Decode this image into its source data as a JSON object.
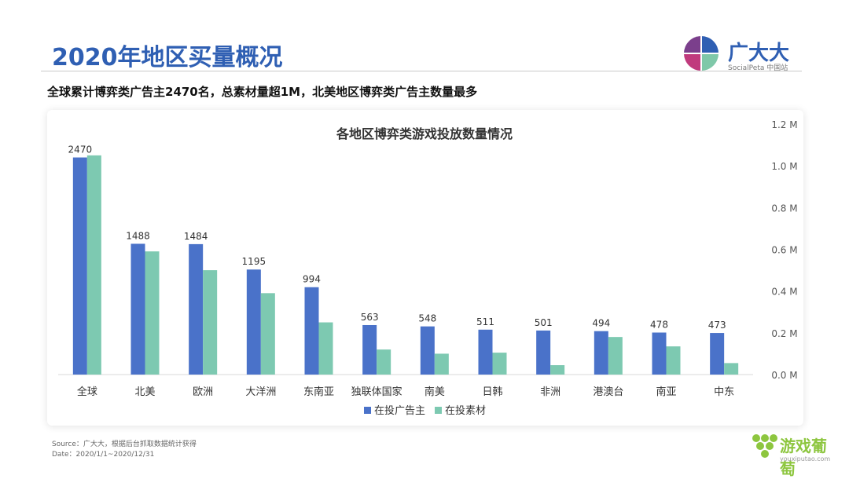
{
  "slide": {
    "title": "2020年地区买量概况",
    "subtitle": "全球累计博弈类广告主2470名，总素材量超1M，北美地区博弈类广告主数量最多",
    "source": "Source：广大大，根据后台抓取数据统计获得",
    "date": "Date：2020/1/1~2020/12/31"
  },
  "logo": {
    "name": "广大大",
    "sub": "SocialPeta 中国站",
    "colors": [
      "#7b3f8c",
      "#2f5fb3",
      "#7fc8a9",
      "#c9c9c9"
    ]
  },
  "watermark": {
    "name": "游戏葡萄",
    "url": "youxiputao.com",
    "color": "#8dc63f"
  },
  "chart_data": {
    "type": "bar",
    "title": "各地区博弈类游戏投放数量情况",
    "categories": [
      "全球",
      "北美",
      "欧洲",
      "大洋洲",
      "东南亚",
      "独联体国家",
      "南美",
      "日韩",
      "非洲",
      "港澳台",
      "南亚",
      "中东"
    ],
    "series": [
      {
        "name": "在投广告主",
        "color": "#4a72c9",
        "axis": "left",
        "values": [
          2470,
          1488,
          1484,
          1195,
          994,
          563,
          548,
          511,
          501,
          494,
          478,
          473
        ],
        "labels": true
      },
      {
        "name": "在投素材",
        "color": "#7dc9b1",
        "axis": "right",
        "values": [
          1.05,
          0.59,
          0.5,
          0.39,
          0.25,
          0.12,
          0.1,
          0.105,
          0.045,
          0.18,
          0.135,
          0.055
        ],
        "labels": false
      }
    ],
    "y_left_range": [
      0,
      2850
    ],
    "y_right_range": [
      0,
      1.2
    ],
    "y_right_ticks": [
      "0.0 M",
      "0.2 M",
      "0.4 M",
      "0.6 M",
      "0.8 M",
      "1.0 M",
      "1.2 M"
    ],
    "legend": "bottom",
    "grid": false
  }
}
